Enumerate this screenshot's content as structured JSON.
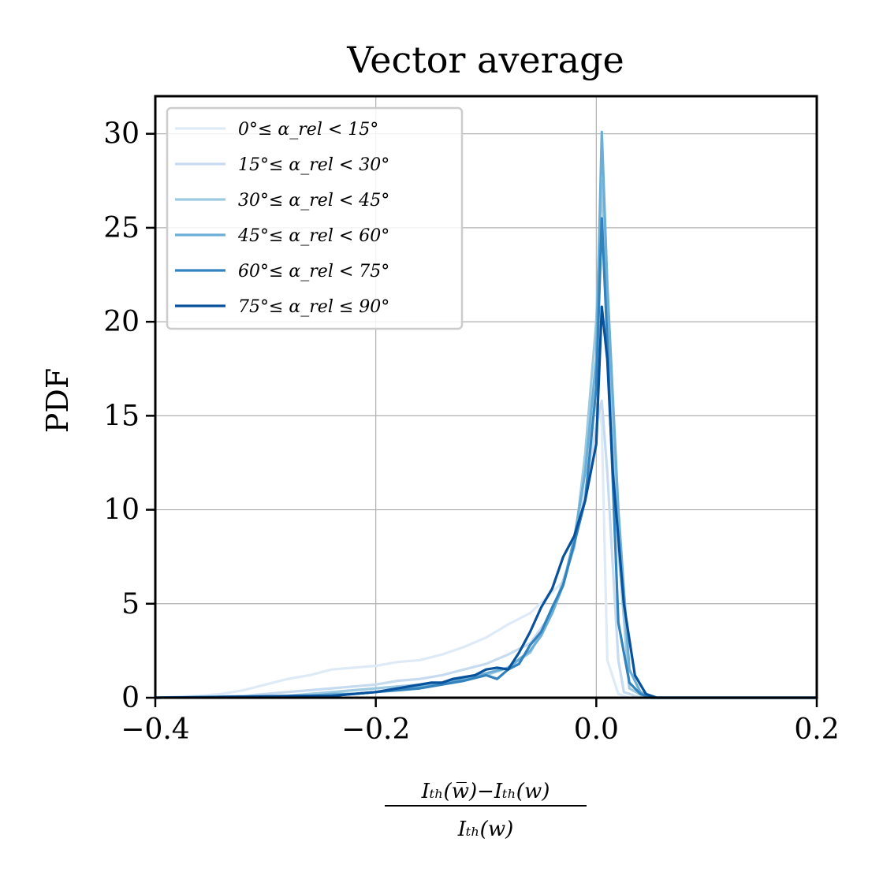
{
  "chart_data": {
    "type": "line",
    "title": "Vector average",
    "ylabel": "PDF",
    "xlabel_numerator": "Iₜₕ(w̅)−Iₜₕ(w)",
    "xlabel_denominator": "Iₜₕ(w)",
    "xlim": [
      -0.4,
      0.2
    ],
    "ylim": [
      0,
      32
    ],
    "xticks": [
      -0.4,
      -0.2,
      0.0,
      0.2
    ],
    "xtick_labels": [
      "−0.4",
      "−0.2",
      "0.0",
      "0.2"
    ],
    "yticks": [
      0,
      5,
      10,
      15,
      20,
      25,
      30
    ],
    "ytick_labels": [
      "0",
      "5",
      "10",
      "15",
      "20",
      "25",
      "30"
    ],
    "grid": true,
    "legend_position": "top-left",
    "series": [
      {
        "name": "0°≤ α_rel < 15°",
        "color": "#deebf7",
        "x": [
          -0.4,
          -0.36,
          -0.34,
          -0.32,
          -0.3,
          -0.28,
          -0.26,
          -0.24,
          -0.22,
          -0.2,
          -0.18,
          -0.16,
          -0.14,
          -0.12,
          -0.1,
          -0.08,
          -0.06,
          -0.04,
          -0.03,
          -0.02,
          -0.01,
          0.0,
          0.005,
          0.01,
          0.02,
          0.03,
          0.05,
          0.2
        ],
        "y": [
          0,
          0.1,
          0.2,
          0.4,
          0.7,
          1.0,
          1.2,
          1.5,
          1.6,
          1.7,
          1.9,
          2.0,
          2.3,
          2.7,
          3.2,
          3.9,
          4.5,
          5.6,
          6.2,
          8.0,
          12.0,
          16.2,
          14.5,
          2.0,
          0.2,
          0,
          0,
          0
        ]
      },
      {
        "name": "15°≤ α_rel < 30°",
        "color": "#c6dbef",
        "x": [
          -0.4,
          -0.32,
          -0.3,
          -0.28,
          -0.26,
          -0.24,
          -0.22,
          -0.2,
          -0.18,
          -0.16,
          -0.14,
          -0.12,
          -0.1,
          -0.08,
          -0.06,
          -0.04,
          -0.03,
          -0.02,
          -0.01,
          0.0,
          0.005,
          0.01,
          0.02,
          0.025,
          0.04,
          0.2
        ],
        "y": [
          0,
          0.1,
          0.2,
          0.3,
          0.4,
          0.5,
          0.6,
          0.7,
          0.9,
          1.0,
          1.2,
          1.5,
          1.8,
          2.3,
          2.9,
          4.5,
          6.0,
          8.5,
          11.0,
          14.5,
          15.8,
          12.0,
          2.0,
          0.3,
          0,
          0
        ]
      },
      {
        "name": "30°≤ α_rel < 45°",
        "color": "#9ecae1",
        "x": [
          -0.4,
          -0.28,
          -0.26,
          -0.24,
          -0.22,
          -0.2,
          -0.18,
          -0.16,
          -0.14,
          -0.12,
          -0.1,
          -0.08,
          -0.06,
          -0.04,
          -0.02,
          -0.01,
          0.0,
          0.005,
          0.01,
          0.02,
          0.03,
          0.045,
          0.2
        ],
        "y": [
          0,
          0.1,
          0.2,
          0.3,
          0.4,
          0.5,
          0.6,
          0.7,
          0.8,
          1.0,
          1.2,
          1.6,
          2.4,
          4.5,
          8.0,
          13.0,
          20.0,
          27.5,
          21.0,
          8.0,
          0.5,
          0,
          0
        ]
      },
      {
        "name": "45°≤ α_rel < 60°",
        "color": "#6baed6",
        "x": [
          -0.4,
          -0.26,
          -0.24,
          -0.22,
          -0.2,
          -0.18,
          -0.16,
          -0.14,
          -0.12,
          -0.1,
          -0.08,
          -0.06,
          -0.05,
          -0.04,
          -0.03,
          -0.02,
          -0.01,
          0.0,
          0.005,
          0.01,
          0.02,
          0.03,
          0.04,
          0.05,
          0.2
        ],
        "y": [
          0,
          0.1,
          0.2,
          0.2,
          0.3,
          0.5,
          0.6,
          0.8,
          1.0,
          1.3,
          1.6,
          2.5,
          3.3,
          4.5,
          6.0,
          8.5,
          12.0,
          18.0,
          30.1,
          22.0,
          10.0,
          1.5,
          0.3,
          0,
          0
        ]
      },
      {
        "name": "60°≤ α_rel < 75°",
        "color": "#3182bd",
        "x": [
          -0.4,
          -0.26,
          -0.24,
          -0.22,
          -0.2,
          -0.18,
          -0.16,
          -0.14,
          -0.12,
          -0.1,
          -0.09,
          -0.08,
          -0.07,
          -0.06,
          -0.05,
          -0.04,
          -0.03,
          -0.02,
          -0.01,
          0.0,
          0.005,
          0.01,
          0.02,
          0.03,
          0.04,
          0.05,
          0.2
        ],
        "y": [
          0,
          0.1,
          0.1,
          0.2,
          0.3,
          0.4,
          0.5,
          0.7,
          0.9,
          1.2,
          1.0,
          1.5,
          1.8,
          2.8,
          3.5,
          4.8,
          6.0,
          8.2,
          10.5,
          16.5,
          25.5,
          19.0,
          4.0,
          0.8,
          0.2,
          0,
          0
        ]
      },
      {
        "name": "75°≤ α_rel ≤ 90°",
        "color": "#08519c",
        "x": [
          -0.4,
          -0.26,
          -0.24,
          -0.22,
          -0.2,
          -0.18,
          -0.16,
          -0.15,
          -0.14,
          -0.13,
          -0.12,
          -0.11,
          -0.1,
          -0.09,
          -0.08,
          -0.07,
          -0.06,
          -0.05,
          -0.04,
          -0.03,
          -0.02,
          -0.01,
          0.0,
          0.005,
          0.01,
          0.015,
          0.025,
          0.035,
          0.045,
          0.055,
          0.2
        ],
        "y": [
          0,
          0.1,
          0.1,
          0.2,
          0.3,
          0.5,
          0.7,
          0.8,
          0.8,
          1.0,
          1.1,
          1.2,
          1.5,
          1.6,
          1.5,
          2.4,
          3.5,
          4.8,
          5.8,
          7.5,
          8.6,
          10.5,
          13.5,
          20.8,
          18.0,
          12.0,
          5.0,
          1.2,
          0.2,
          0,
          0
        ]
      }
    ]
  }
}
